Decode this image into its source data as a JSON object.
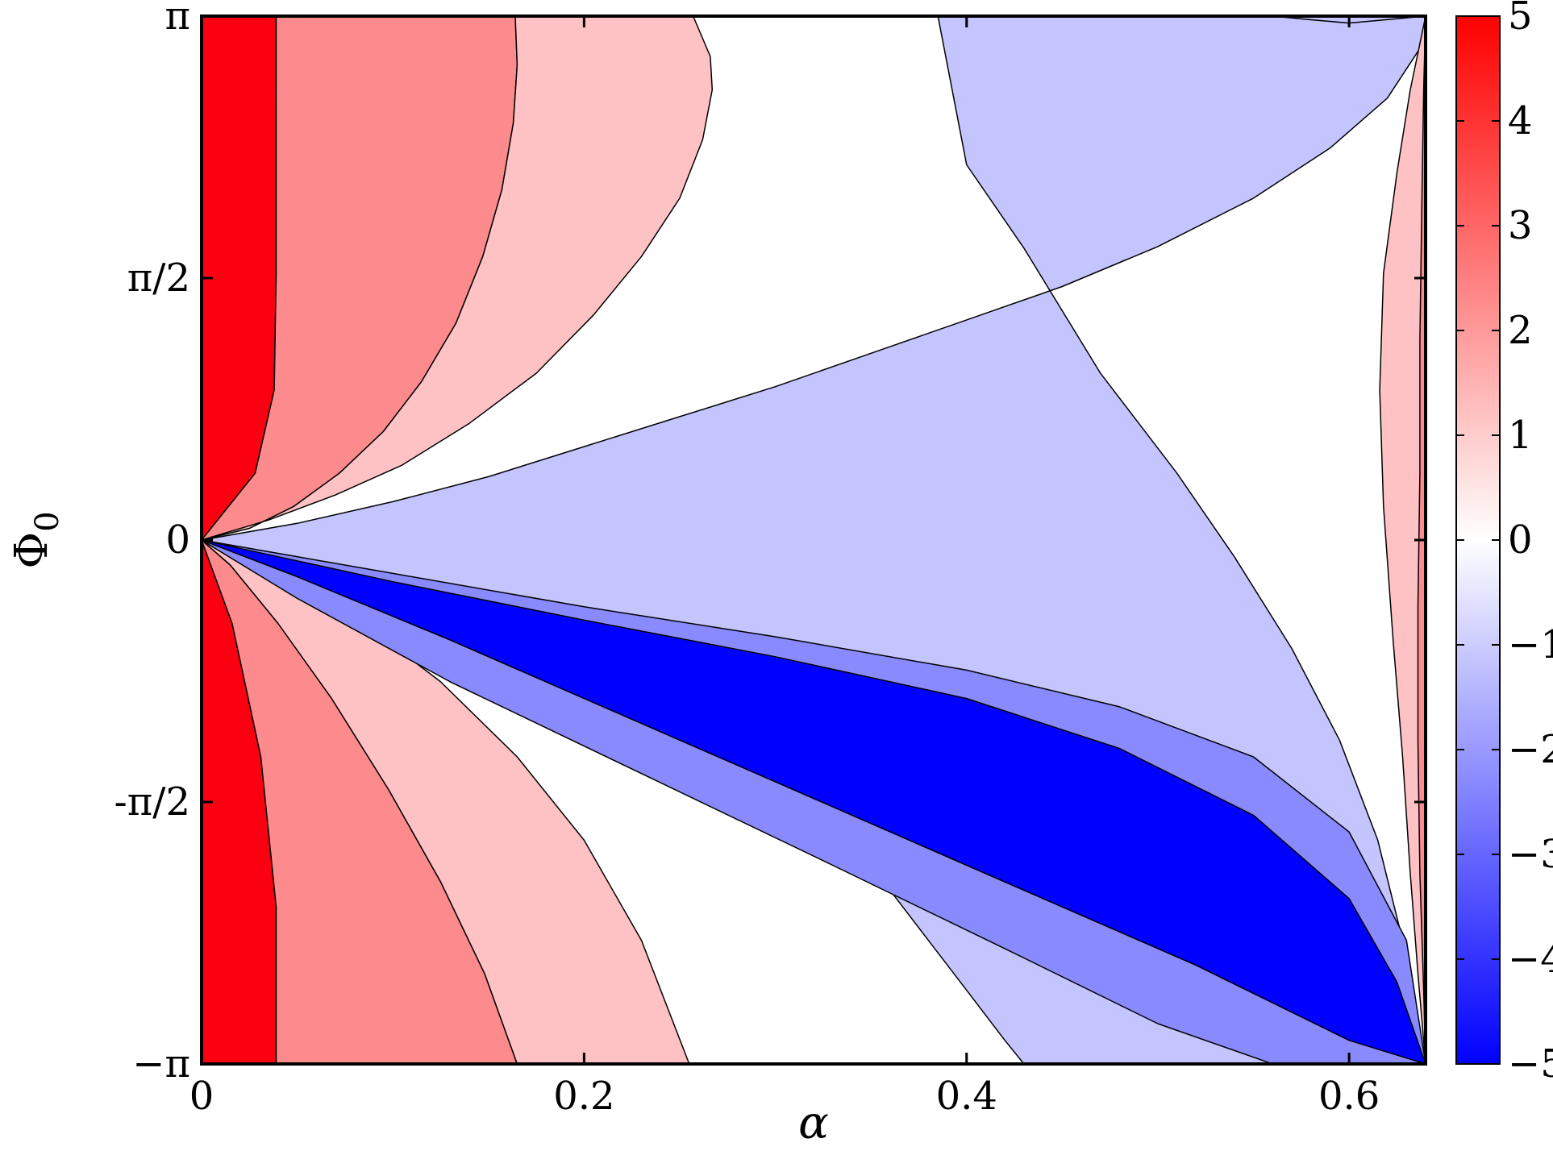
{
  "chart_data": {
    "type": "heatmap",
    "subtype": "filled-contour",
    "title": "",
    "xlabel": "α",
    "ylabel": "Φ",
    "ylabel_subscript": "0",
    "xlim": [
      0,
      0.64
    ],
    "ylim": [
      -3.14159,
      3.14159
    ],
    "x_ticks": [
      {
        "value": 0,
        "label": "0"
      },
      {
        "value": 0.2,
        "label": "0.2"
      },
      {
        "value": 0.4,
        "label": "0.4"
      },
      {
        "value": 0.6,
        "label": "0.6"
      }
    ],
    "y_ticks": [
      {
        "value": -3.14159,
        "label": "−π"
      },
      {
        "value": -1.5708,
        "label": "-π/2"
      },
      {
        "value": 0,
        "label": "0"
      },
      {
        "value": 1.5708,
        "label": "π/2"
      },
      {
        "value": 3.14159,
        "label": "π"
      }
    ],
    "colorbar": {
      "range": [
        -5,
        5
      ],
      "ticks": [
        {
          "value": 5,
          "label": "5"
        },
        {
          "value": 4,
          "label": "4"
        },
        {
          "value": 3,
          "label": "3"
        },
        {
          "value": 2,
          "label": "2"
        },
        {
          "value": 1,
          "label": "1"
        },
        {
          "value": 0,
          "label": "0"
        },
        {
          "value": -1,
          "label": "−1"
        },
        {
          "value": -2,
          "label": "−2"
        },
        {
          "value": -3,
          "label": "−3"
        },
        {
          "value": -4,
          "label": "−4"
        },
        {
          "value": -5,
          "label": "−5"
        }
      ],
      "low_color": "#0000ff",
      "mid_color": "#ffffff",
      "high_color": "#ff0000"
    },
    "contour_levels": [
      {
        "level": 2.5,
        "color": "#fa0011"
      },
      {
        "level": 1.5,
        "color": "#fd8a8d"
      },
      {
        "level": 0.5,
        "color": "#fec2c4"
      },
      {
        "level": 0,
        "color": "#ffffff"
      },
      {
        "level": -0.5,
        "color": "#c4c4ff"
      },
      {
        "level": -1.5,
        "color": "#8a8aff"
      },
      {
        "level": -2.5,
        "color": "#0000ff"
      }
    ],
    "regions": [
      {
        "level": 2.5,
        "pts": [
          [
            0,
            3.14159
          ],
          [
            0.039,
            3.14159
          ],
          [
            0.039,
            1.6
          ],
          [
            0.038,
            0.9
          ],
          [
            0.028,
            0.4
          ],
          [
            0,
            0
          ],
          [
            0.016,
            -0.5
          ],
          [
            0.031,
            -1.3
          ],
          [
            0.039,
            -2.2
          ],
          [
            0.039,
            -3.14159
          ],
          [
            0,
            -3.14159
          ]
        ]
      },
      {
        "level": 1.5,
        "pts": [
          [
            0.039,
            3.14159
          ],
          [
            0.164,
            3.14159
          ],
          [
            0.165,
            2.85
          ],
          [
            0.163,
            2.5
          ],
          [
            0.157,
            2.1
          ],
          [
            0.147,
            1.7
          ],
          [
            0.133,
            1.3
          ],
          [
            0.115,
            0.95
          ],
          [
            0.095,
            0.65
          ],
          [
            0.072,
            0.4
          ],
          [
            0.048,
            0.2
          ],
          [
            0.025,
            0.07
          ],
          [
            0,
            0
          ],
          [
            0.015,
            -0.15
          ],
          [
            0.04,
            -0.5
          ],
          [
            0.068,
            -0.95
          ],
          [
            0.098,
            -1.5
          ],
          [
            0.125,
            -2.05
          ],
          [
            0.148,
            -2.6
          ],
          [
            0.165,
            -3.14159
          ],
          [
            0.039,
            -3.14159
          ],
          [
            0.039,
            -2.2
          ],
          [
            0.031,
            -1.3
          ],
          [
            0.016,
            -0.5
          ],
          [
            0,
            0
          ],
          [
            0.028,
            0.4
          ],
          [
            0.038,
            0.9
          ],
          [
            0.039,
            1.6
          ]
        ]
      },
      {
        "level": 0.5,
        "pts": [
          [
            0.164,
            3.14159
          ],
          [
            0.257,
            3.14159
          ],
          [
            0.266,
            2.9
          ],
          [
            0.267,
            2.7
          ],
          [
            0.262,
            2.4
          ],
          [
            0.25,
            2.05
          ],
          [
            0.23,
            1.7
          ],
          [
            0.205,
            1.35
          ],
          [
            0.175,
            1.0
          ],
          [
            0.14,
            0.7
          ],
          [
            0.105,
            0.45
          ],
          [
            0.07,
            0.27
          ],
          [
            0.035,
            0.12
          ],
          [
            0,
            0
          ],
          [
            0.045,
            -0.2
          ],
          [
            0.085,
            -0.5
          ],
          [
            0.125,
            -0.85
          ],
          [
            0.165,
            -1.3
          ],
          [
            0.2,
            -1.8
          ],
          [
            0.23,
            -2.4
          ],
          [
            0.255,
            -3.14159
          ],
          [
            0.165,
            -3.14159
          ],
          [
            0.148,
            -2.6
          ],
          [
            0.125,
            -2.05
          ],
          [
            0.098,
            -1.5
          ],
          [
            0.068,
            -0.95
          ],
          [
            0.04,
            -0.5
          ],
          [
            0.015,
            -0.15
          ],
          [
            0,
            0
          ],
          [
            0.025,
            0.07
          ],
          [
            0.048,
            0.2
          ],
          [
            0.072,
            0.4
          ],
          [
            0.095,
            0.65
          ],
          [
            0.115,
            0.95
          ],
          [
            0.133,
            1.3
          ],
          [
            0.147,
            1.7
          ],
          [
            0.157,
            2.1
          ],
          [
            0.163,
            2.5
          ],
          [
            0.165,
            2.85
          ]
        ]
      },
      {
        "level": -0.5,
        "pts": [
          [
            0.385,
            3.14159
          ],
          [
            0.64,
            3.14159
          ],
          [
            0.64,
            3.0
          ],
          [
            0.62,
            2.65
          ],
          [
            0.59,
            2.35
          ],
          [
            0.55,
            2.05
          ],
          [
            0.5,
            1.76
          ],
          [
            0.45,
            1.52
          ],
          [
            0.4,
            1.32
          ],
          [
            0.35,
            1.12
          ],
          [
            0.3,
            0.92
          ],
          [
            0.25,
            0.74
          ],
          [
            0.2,
            0.56
          ],
          [
            0.15,
            0.38
          ],
          [
            0.1,
            0.23
          ],
          [
            0.05,
            0.1
          ],
          [
            0,
            0
          ],
          [
            0.1,
            -0.4
          ],
          [
            0.2,
            -0.85
          ],
          [
            0.28,
            -1.3
          ],
          [
            0.34,
            -1.8
          ],
          [
            0.38,
            -2.4
          ],
          [
            0.4,
            -2.7
          ],
          [
            0.42,
            -3.0
          ],
          [
            0.43,
            -3.14159
          ],
          [
            0.64,
            -3.14159
          ],
          [
            0.635,
            -2.8
          ],
          [
            0.628,
            -2.4
          ],
          [
            0.615,
            -1.8
          ],
          [
            0.595,
            -1.2
          ],
          [
            0.57,
            -0.65
          ],
          [
            0.54,
            -0.1
          ],
          [
            0.51,
            0.4
          ],
          [
            0.47,
            1.0
          ],
          [
            0.43,
            1.75
          ],
          [
            0.4,
            2.25
          ]
        ]
      },
      {
        "level": -0.5,
        "pts": [
          [
            0.56,
            3.14159
          ],
          [
            0.64,
            3.14159
          ],
          [
            0.6,
            3.1
          ],
          [
            0.58,
            3.12
          ]
        ]
      },
      {
        "level": -1.5,
        "pts": [
          [
            0,
            0
          ],
          [
            0.1,
            -0.2
          ],
          [
            0.2,
            -0.4
          ],
          [
            0.3,
            -0.58
          ],
          [
            0.4,
            -0.78
          ],
          [
            0.48,
            -1.0
          ],
          [
            0.55,
            -1.3
          ],
          [
            0.6,
            -1.75
          ],
          [
            0.63,
            -2.4
          ],
          [
            0.64,
            -3.14159
          ],
          [
            0.56,
            -3.14159
          ],
          [
            0.5,
            -2.9
          ],
          [
            0.42,
            -2.45
          ],
          [
            0.33,
            -1.95
          ],
          [
            0.23,
            -1.4
          ],
          [
            0.13,
            -0.85
          ],
          [
            0.05,
            -0.35
          ]
        ]
      },
      {
        "level": -2.5,
        "pts": [
          [
            0,
            0
          ],
          [
            0.1,
            -0.25
          ],
          [
            0.2,
            -0.48
          ],
          [
            0.3,
            -0.7
          ],
          [
            0.4,
            -0.95
          ],
          [
            0.48,
            -1.25
          ],
          [
            0.55,
            -1.65
          ],
          [
            0.6,
            -2.15
          ],
          [
            0.625,
            -2.65
          ],
          [
            0.64,
            -3.14159
          ],
          [
            0.6,
            -3.0
          ],
          [
            0.52,
            -2.55
          ],
          [
            0.43,
            -2.1
          ],
          [
            0.33,
            -1.6
          ],
          [
            0.23,
            -1.1
          ],
          [
            0.13,
            -0.6
          ],
          [
            0.05,
            -0.22
          ]
        ]
      },
      {
        "level": 0.5,
        "pts": [
          [
            0.64,
            3.14159
          ],
          [
            0.64,
            -3.14159
          ],
          [
            0.636,
            -2.6
          ],
          [
            0.632,
            -2.0
          ],
          [
            0.628,
            -1.3
          ],
          [
            0.623,
            -0.6
          ],
          [
            0.618,
            0.2
          ],
          [
            0.616,
            0.9
          ],
          [
            0.618,
            1.6
          ],
          [
            0.625,
            2.2
          ],
          [
            0.632,
            2.7
          ]
        ]
      },
      {
        "level": 1.5,
        "pts": [
          [
            0.64,
            3.14159
          ],
          [
            0.64,
            -3.14159
          ],
          [
            0.639,
            -2.7
          ],
          [
            0.637,
            -2.0
          ],
          [
            0.636,
            -1.2
          ],
          [
            0.636,
            -0.4
          ],
          [
            0.637,
            0.4
          ],
          [
            0.637,
            1.2
          ],
          [
            0.638,
            2.0
          ],
          [
            0.639,
            2.7
          ]
        ]
      }
    ]
  }
}
